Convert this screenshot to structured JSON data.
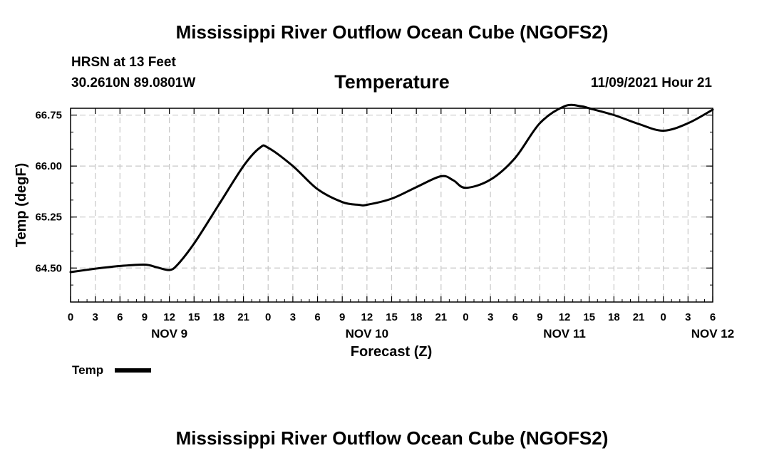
{
  "header": {
    "title": "Mississippi River Outflow Ocean Cube (NGOFS2)",
    "station": "HRSN at 13 Feet",
    "coords": "30.2610N  89.0801W",
    "datetime": "11/09/2021 Hour 21"
  },
  "footer": {
    "title": "Mississippi River Outflow Ocean Cube (NGOFS2)"
  },
  "legend": {
    "label": "Temp"
  },
  "colors": {
    "line": "#000000",
    "grid": "#c8c8c8"
  },
  "chart_data": {
    "type": "line",
    "title": "Temperature",
    "xlabel": "Forecast (Z)",
    "ylabel": "Temp (degF)",
    "xlim": [
      0,
      78
    ],
    "ylim": [
      64.0,
      66.85
    ],
    "yticks": [
      64.5,
      65.25,
      66.0,
      66.75
    ],
    "ytick_labels": [
      "64.50",
      "65.25",
      "66.00",
      "66.75"
    ],
    "xticks": [
      0,
      3,
      6,
      9,
      12,
      15,
      18,
      21,
      24,
      27,
      30,
      33,
      36,
      39,
      42,
      45,
      48,
      51,
      54,
      57,
      60,
      63,
      66,
      69,
      72,
      75,
      78
    ],
    "xtick_labels": [
      "0",
      "3",
      "6",
      "9",
      "12",
      "15",
      "18",
      "21",
      "0",
      "3",
      "6",
      "9",
      "12",
      "15",
      "18",
      "21",
      "0",
      "3",
      "6",
      "9",
      "12",
      "15",
      "18",
      "21",
      "0",
      "3",
      "6"
    ],
    "day_labels": [
      {
        "x": 12,
        "label": "NOV 9"
      },
      {
        "x": 36,
        "label": "NOV 10"
      },
      {
        "x": 60,
        "label": "NOV 11"
      },
      {
        "x": 78,
        "label": "NOV 12"
      }
    ],
    "grid": true,
    "legend_position": "bottom-left",
    "series": [
      {
        "name": "Temp",
        "x": [
          0,
          3,
          6,
          9,
          10.5,
          12,
          13,
          15,
          18,
          21,
          23,
          24,
          27,
          30,
          33,
          35,
          36,
          39,
          42,
          45,
          46.5,
          48,
          51,
          54,
          57,
          60,
          62,
          63,
          66,
          69,
          72,
          75,
          78
        ],
        "values": [
          64.44,
          64.49,
          64.53,
          64.55,
          64.51,
          64.47,
          64.55,
          64.86,
          65.43,
          66.0,
          66.27,
          66.27,
          66.0,
          65.66,
          65.47,
          65.43,
          65.43,
          65.52,
          65.69,
          65.85,
          65.79,
          65.68,
          65.8,
          66.12,
          66.63,
          66.88,
          66.88,
          66.85,
          66.75,
          66.62,
          66.52,
          66.63,
          66.83
        ]
      }
    ]
  }
}
